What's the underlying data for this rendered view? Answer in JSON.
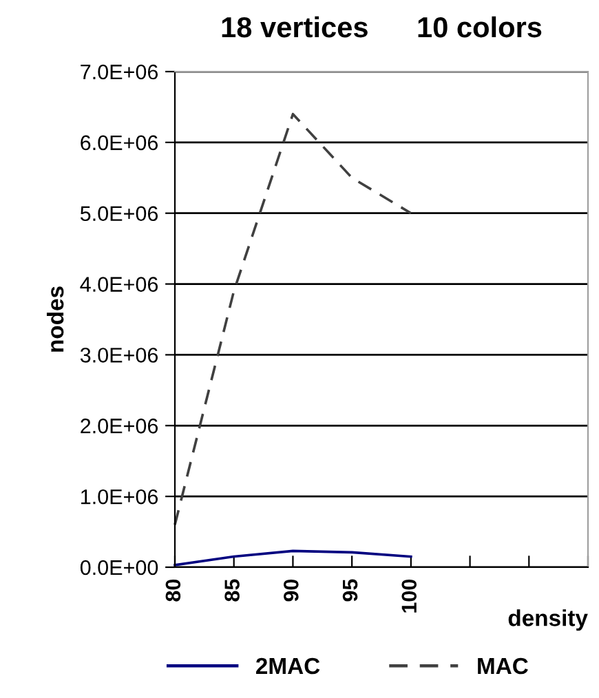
{
  "chart_data": {
    "type": "line",
    "title": "18 vertices      10 colors",
    "xlabel": "density",
    "ylabel": "nodes",
    "x": [
      80,
      85,
      90,
      95,
      100
    ],
    "series": [
      {
        "name": "2MAC",
        "color": "#000080",
        "values": [
          30000,
          150000,
          230000,
          210000,
          150000
        ],
        "line_style": "solid"
      },
      {
        "name": "MAC",
        "color": "#404040",
        "values": [
          600000,
          3900000,
          6400000,
          5500000,
          5000000
        ],
        "line_style": "dashed"
      }
    ],
    "xlim": [
      80,
      115
    ],
    "xticks": [
      80,
      85,
      90,
      95,
      100,
      {
        "value": 105,
        "label": null
      },
      {
        "value": 110,
        "label": null
      },
      {
        "value": 115,
        "label": null
      }
    ],
    "ylim": [
      0,
      7000000
    ],
    "yticks": [
      {
        "value": 0,
        "label": "0.0E+00"
      },
      {
        "value": 1000000,
        "label": "1.0E+06"
      },
      {
        "value": 2000000,
        "label": "2.0E+06"
      },
      {
        "value": 3000000,
        "label": "3.0E+06"
      },
      {
        "value": 4000000,
        "label": "4.0E+06"
      },
      {
        "value": 5000000,
        "label": "5.0E+06"
      },
      {
        "value": 6000000,
        "label": "6.0E+06"
      },
      {
        "value": 7000000,
        "label": "7.0E+06"
      }
    ],
    "grid": "y",
    "legend": "bottom",
    "marker": "none"
  }
}
